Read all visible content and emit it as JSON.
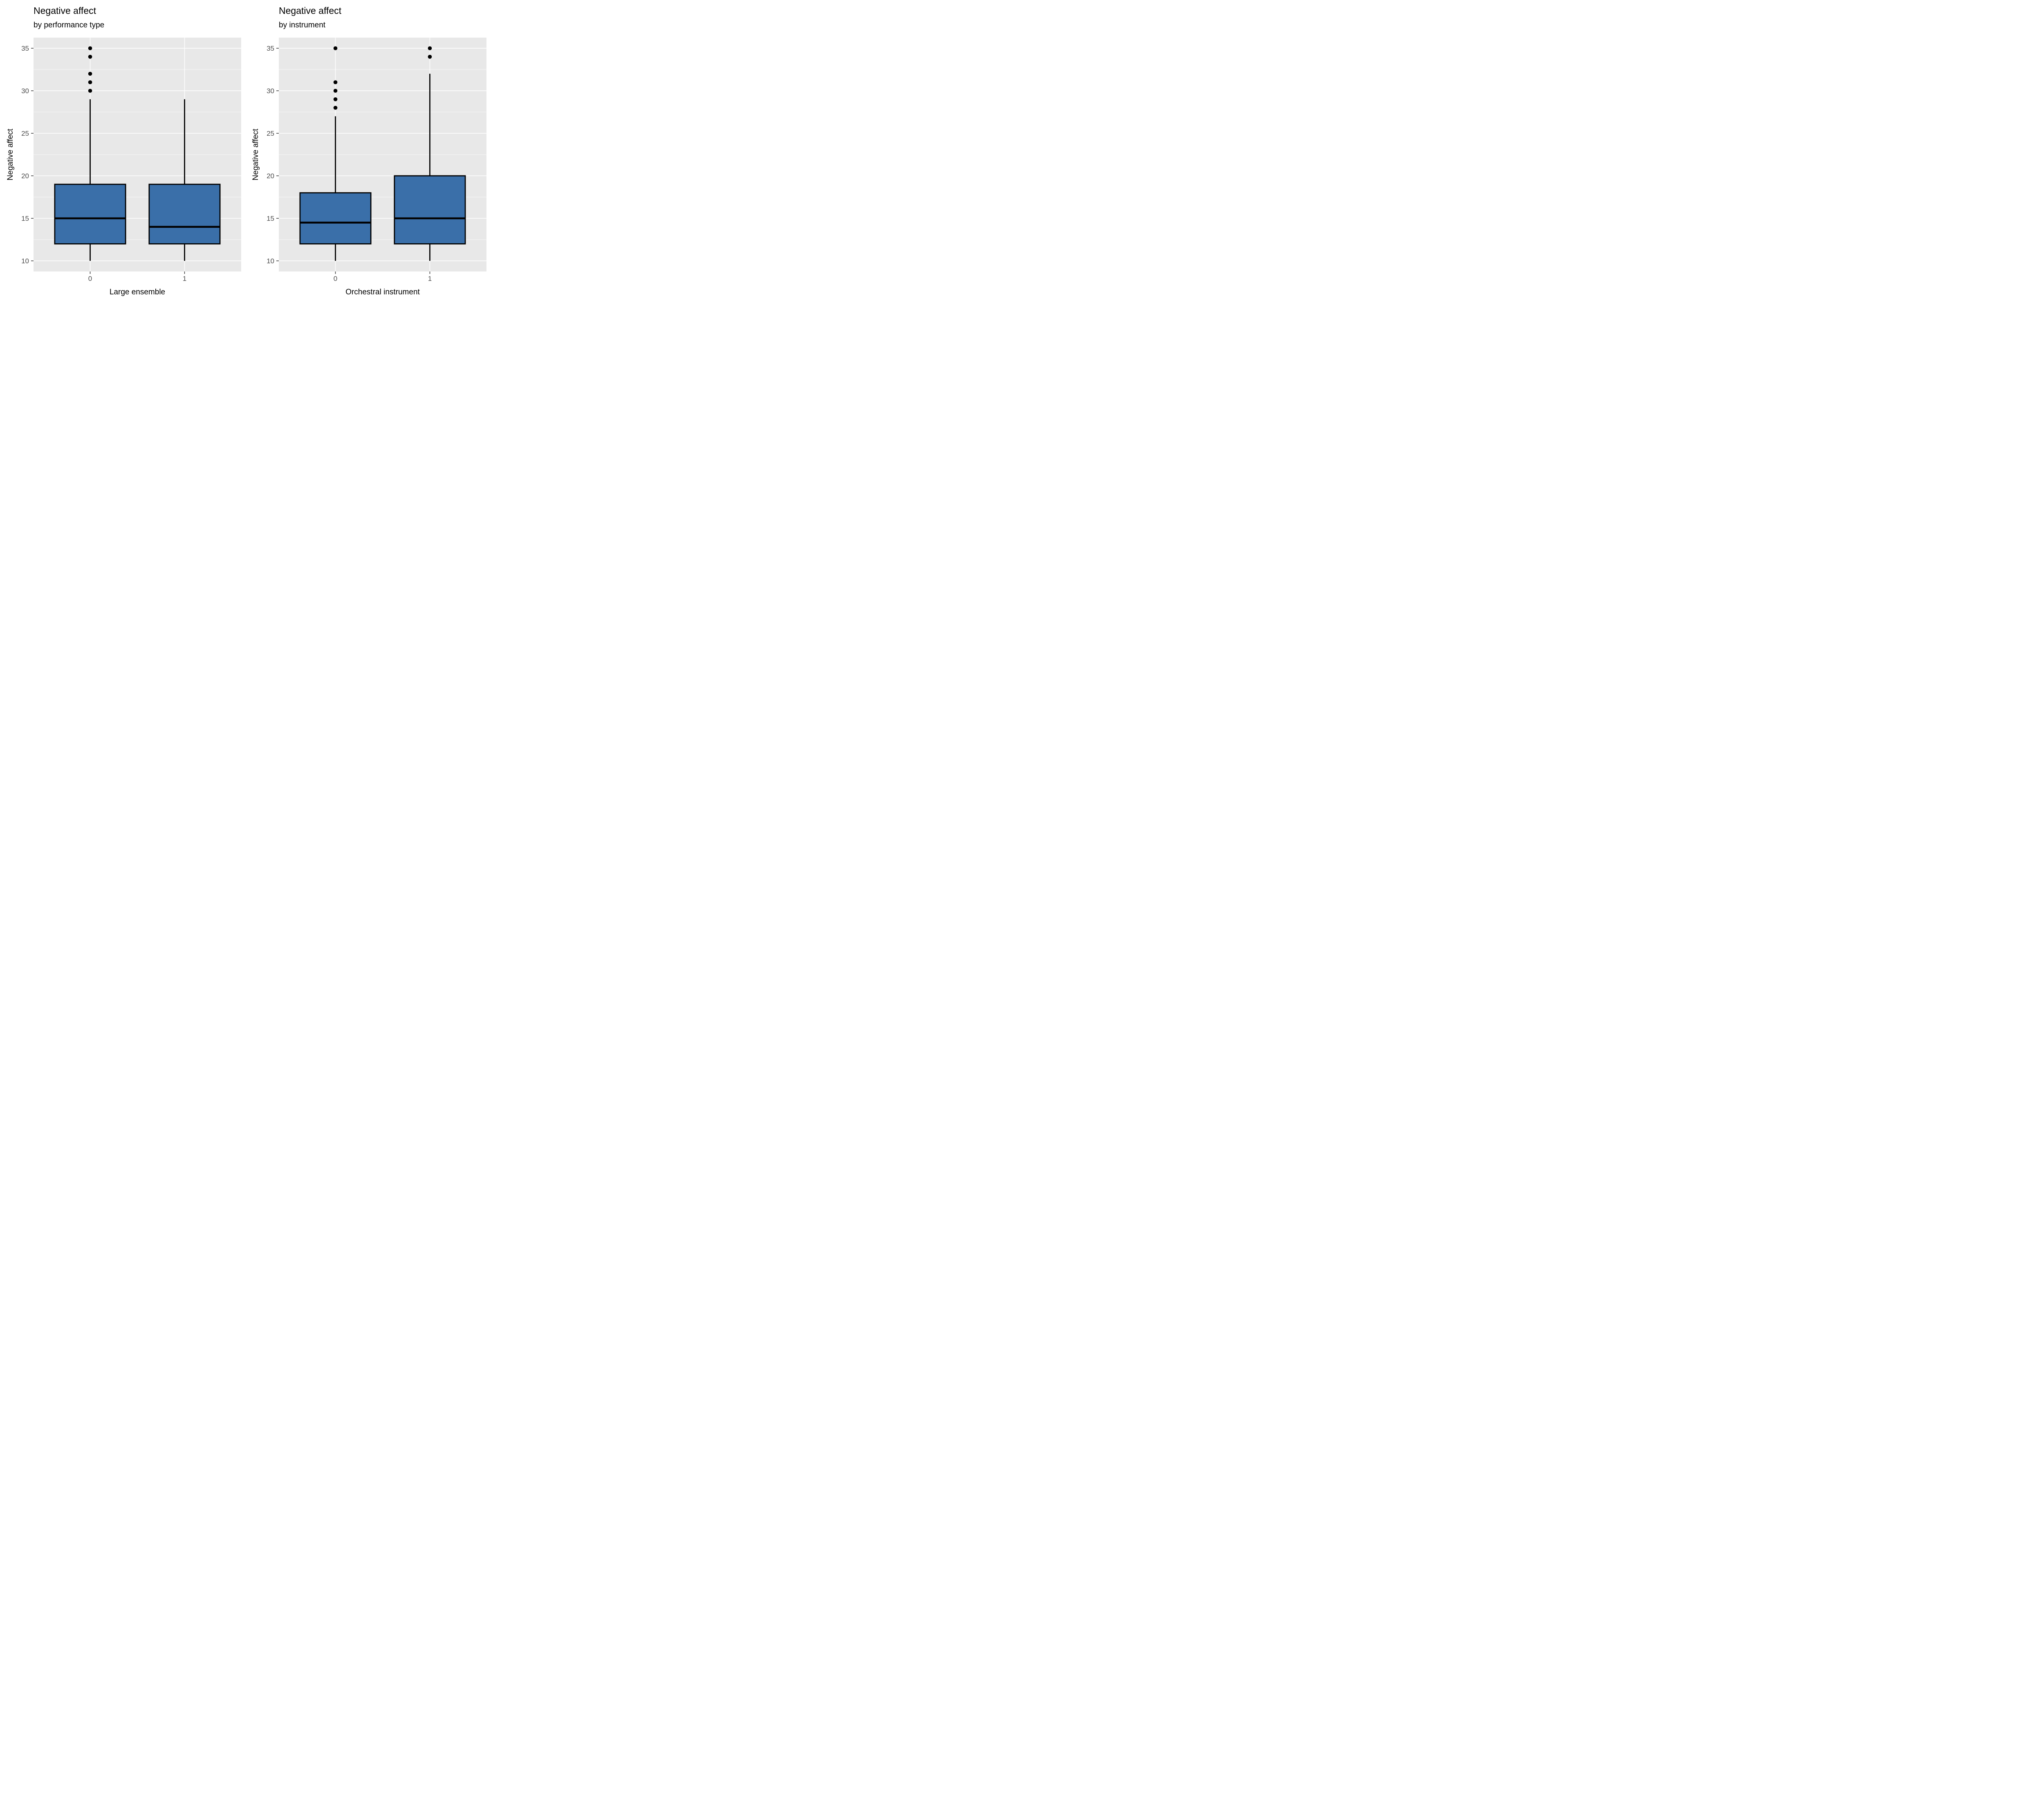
{
  "figure": {
    "background": "#ffffff",
    "text_color": "#000000"
  },
  "chart_data": [
    {
      "type": "boxplot",
      "title": "Negative affect",
      "subtitle": "by performance type",
      "xlabel": "Large ensemble",
      "ylabel": "Negative affect",
      "categories": [
        "0",
        "1"
      ],
      "yticks": [
        10,
        15,
        20,
        25,
        30,
        35
      ],
      "minor_gridlines": [
        12.5,
        17.5,
        22.5,
        27.5,
        32.5
      ],
      "ylim": [
        8.75,
        36.25
      ],
      "grid": "on",
      "legend": "none",
      "boxes": [
        {
          "category": "0",
          "whisker_low": 10,
          "q1": 12,
          "median": 15,
          "q3": 19,
          "whisker_high": 29,
          "outliers": [
            30,
            31,
            32,
            34,
            35
          ]
        },
        {
          "category": "1",
          "whisker_low": 10,
          "q1": 12,
          "median": 14,
          "q3": 19,
          "whisker_high": 29,
          "outliers": []
        }
      ],
      "colors": {
        "box_fill": "#3A6FA9",
        "box_stroke": "#000000",
        "median": "#000000",
        "whisker": "#000000",
        "outlier": "#000000",
        "panel_bg": "#E8E8E8",
        "gridline": "#FFFFFF",
        "tick_mark": "#333333",
        "tick_label": "#4D4D4D"
      }
    },
    {
      "type": "boxplot",
      "title": "Negative affect",
      "subtitle": "by instrument",
      "xlabel": "Orchestral instrument",
      "ylabel": "Negative affect",
      "categories": [
        "0",
        "1"
      ],
      "yticks": [
        10,
        15,
        20,
        25,
        30,
        35
      ],
      "minor_gridlines": [
        12.5,
        17.5,
        22.5,
        27.5,
        32.5
      ],
      "ylim": [
        8.75,
        36.25
      ],
      "grid": "on",
      "legend": "none",
      "boxes": [
        {
          "category": "0",
          "whisker_low": 10,
          "q1": 12,
          "median": 14.5,
          "q3": 18,
          "whisker_high": 27,
          "outliers": [
            28,
            29,
            30,
            31,
            35
          ]
        },
        {
          "category": "1",
          "whisker_low": 10,
          "q1": 12,
          "median": 15,
          "q3": 20,
          "whisker_high": 32,
          "outliers": [
            34,
            35
          ]
        }
      ],
      "colors": {
        "box_fill": "#3A6FA9",
        "box_stroke": "#000000",
        "median": "#000000",
        "whisker": "#000000",
        "outlier": "#000000",
        "panel_bg": "#E8E8E8",
        "gridline": "#FFFFFF",
        "tick_mark": "#333333",
        "tick_label": "#4D4D4D"
      }
    }
  ]
}
